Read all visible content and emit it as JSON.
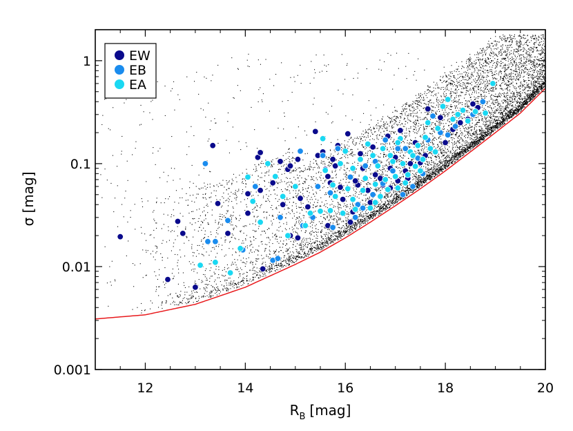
{
  "chart_data": {
    "type": "scatter",
    "title": "",
    "xlabel": "R",
    "xlabel_sub": "B",
    "xlabel_unit": "[mag]",
    "ylabel": "σ [mag]",
    "xlim": [
      11,
      20
    ],
    "ylim": [
      0.001,
      2
    ],
    "yscale": "log",
    "grid": false,
    "legend_position": "top-left",
    "x_ticks": [
      12,
      14,
      16,
      18,
      20
    ],
    "x_tick_labels": [
      "12",
      "14",
      "16",
      "18",
      "20"
    ],
    "y_ticks": [
      0.001,
      0.01,
      0.1,
      1
    ],
    "y_tick_labels": [
      "0.001",
      "0.01",
      "0.1",
      "1"
    ],
    "background_stars_color": "#000000",
    "noise_floor_color": "#e8181b",
    "noise_floor_curve": {
      "x": [
        11,
        12,
        13,
        14,
        15,
        15.5,
        16,
        16.5,
        17,
        17.5,
        18,
        18.5,
        19,
        19.5,
        20
      ],
      "y": [
        0.0031,
        0.0034,
        0.0043,
        0.0063,
        0.0105,
        0.0138,
        0.019,
        0.027,
        0.039,
        0.057,
        0.085,
        0.13,
        0.2,
        0.31,
        0.54
      ]
    },
    "series": [
      {
        "name": "EW",
        "color": "#0a0a8c",
        "points": [
          [
            11.5,
            0.0195
          ],
          [
            12.45,
            0.0075
          ],
          [
            12.65,
            0.0275
          ],
          [
            12.75,
            0.021
          ],
          [
            13.0,
            0.0063
          ],
          [
            13.35,
            0.15
          ],
          [
            13.45,
            0.041
          ],
          [
            13.65,
            0.021
          ],
          [
            14.05,
            0.051
          ],
          [
            14.05,
            0.033
          ],
          [
            14.25,
            0.115
          ],
          [
            14.3,
            0.128
          ],
          [
            14.3,
            0.055
          ],
          [
            14.35,
            0.0095
          ],
          [
            14.55,
            0.065
          ],
          [
            14.7,
            0.105
          ],
          [
            14.75,
            0.04
          ],
          [
            14.85,
            0.088
          ],
          [
            14.9,
            0.095
          ],
          [
            14.9,
            0.02
          ],
          [
            15.05,
            0.11
          ],
          [
            15.05,
            0.019
          ],
          [
            15.1,
            0.046
          ],
          [
            15.4,
            0.205
          ],
          [
            15.45,
            0.12
          ],
          [
            15.55,
            0.13
          ],
          [
            15.6,
            0.088
          ],
          [
            15.65,
            0.075
          ],
          [
            15.7,
            0.065
          ],
          [
            15.75,
            0.11
          ],
          [
            15.85,
            0.15
          ],
          [
            15.9,
            0.059
          ],
          [
            15.95,
            0.045
          ],
          [
            16.05,
            0.195
          ],
          [
            16.1,
            0.027
          ],
          [
            16.25,
            0.062
          ],
          [
            16.3,
            0.125
          ],
          [
            16.35,
            0.09
          ],
          [
            16.45,
            0.055
          ],
          [
            16.5,
            0.042
          ],
          [
            16.6,
            0.078
          ],
          [
            16.7,
            0.072
          ],
          [
            16.75,
            0.062
          ],
          [
            16.85,
            0.185
          ],
          [
            16.9,
            0.09
          ],
          [
            17.0,
            0.115
          ],
          [
            17.05,
            0.068
          ],
          [
            17.2,
            0.085
          ],
          [
            17.3,
            0.1
          ],
          [
            17.4,
            0.16
          ],
          [
            17.5,
            0.102
          ],
          [
            17.6,
            0.12
          ],
          [
            17.65,
            0.34
          ],
          [
            17.8,
            0.13
          ],
          [
            17.9,
            0.28
          ],
          [
            18.0,
            0.16
          ],
          [
            18.15,
            0.215
          ],
          [
            18.3,
            0.25
          ],
          [
            18.45,
            0.27
          ],
          [
            18.55,
            0.38
          ],
          [
            18.65,
            0.35
          ],
          [
            16.2,
            0.068
          ],
          [
            16.15,
            0.034
          ],
          [
            17.25,
            0.072
          ],
          [
            16.9,
            0.058
          ],
          [
            15.8,
            0.095
          ],
          [
            16.55,
            0.145
          ],
          [
            17.1,
            0.21
          ],
          [
            15.25,
            0.038
          ],
          [
            15.65,
            0.025
          ]
        ]
      },
      {
        "name": "EB",
        "color": "#1a8cee",
        "points": [
          [
            13.2,
            0.1
          ],
          [
            13.25,
            0.0175
          ],
          [
            13.4,
            0.0175
          ],
          [
            13.65,
            0.028
          ],
          [
            13.95,
            0.0145
          ],
          [
            14.2,
            0.06
          ],
          [
            14.55,
            0.0115
          ],
          [
            14.65,
            0.012
          ],
          [
            14.7,
            0.03
          ],
          [
            15.1,
            0.132
          ],
          [
            15.15,
            0.025
          ],
          [
            15.45,
            0.06
          ],
          [
            15.55,
            0.12
          ],
          [
            15.7,
            0.052
          ],
          [
            15.75,
            0.024
          ],
          [
            15.85,
            0.14
          ],
          [
            16.2,
            0.03
          ],
          [
            16.25,
            0.04
          ],
          [
            16.4,
            0.095
          ],
          [
            16.55,
            0.05
          ],
          [
            16.6,
            0.105
          ],
          [
            16.8,
            0.17
          ],
          [
            16.95,
            0.085
          ],
          [
            17.15,
            0.05
          ],
          [
            17.2,
            0.14
          ],
          [
            17.35,
            0.06
          ],
          [
            17.45,
            0.113
          ],
          [
            17.55,
            0.08
          ],
          [
            17.75,
            0.29
          ],
          [
            17.9,
            0.2
          ],
          [
            18.05,
            0.19
          ],
          [
            18.2,
            0.23
          ],
          [
            18.55,
            0.3
          ],
          [
            18.75,
            0.4
          ],
          [
            16.1,
            0.074
          ],
          [
            17.05,
            0.14
          ],
          [
            16.35,
            0.037
          ],
          [
            15.35,
            0.03
          ],
          [
            16.75,
            0.064
          ],
          [
            17.65,
            0.17
          ]
        ]
      },
      {
        "name": "EA",
        "color": "#1ad8f2",
        "points": [
          [
            13.1,
            0.0103
          ],
          [
            13.4,
            0.011
          ],
          [
            13.7,
            0.0087
          ],
          [
            13.9,
            0.015
          ],
          [
            14.05,
            0.074
          ],
          [
            14.15,
            0.043
          ],
          [
            14.3,
            0.027
          ],
          [
            14.45,
            0.1
          ],
          [
            14.6,
            0.075
          ],
          [
            14.75,
            0.048
          ],
          [
            14.85,
            0.02
          ],
          [
            15.0,
            0.06
          ],
          [
            15.2,
            0.025
          ],
          [
            15.3,
            0.033
          ],
          [
            15.5,
            0.0345
          ],
          [
            15.55,
            0.175
          ],
          [
            15.6,
            0.086
          ],
          [
            15.7,
            0.035
          ],
          [
            15.75,
            0.062
          ],
          [
            15.8,
            0.048
          ],
          [
            15.9,
            0.1
          ],
          [
            16.0,
            0.132
          ],
          [
            16.05,
            0.057
          ],
          [
            16.15,
            0.045
          ],
          [
            16.2,
            0.036
          ],
          [
            16.3,
            0.11
          ],
          [
            16.4,
            0.072
          ],
          [
            16.45,
            0.155
          ],
          [
            16.5,
            0.037
          ],
          [
            16.55,
            0.12
          ],
          [
            16.6,
            0.063
          ],
          [
            16.65,
            0.095
          ],
          [
            16.7,
            0.048
          ],
          [
            16.75,
            0.14
          ],
          [
            16.8,
            0.07
          ],
          [
            16.85,
            0.056
          ],
          [
            16.9,
            0.12
          ],
          [
            17.0,
            0.075
          ],
          [
            17.05,
            0.058
          ],
          [
            17.1,
            0.175
          ],
          [
            17.15,
            0.1
          ],
          [
            17.25,
            0.078
          ],
          [
            17.3,
            0.13
          ],
          [
            17.4,
            0.094
          ],
          [
            17.45,
            0.15
          ],
          [
            17.55,
            0.11
          ],
          [
            17.6,
            0.18
          ],
          [
            17.65,
            0.25
          ],
          [
            17.7,
            0.14
          ],
          [
            17.8,
            0.13
          ],
          [
            17.85,
            0.22
          ],
          [
            17.95,
            0.36
          ],
          [
            18.05,
            0.42
          ],
          [
            18.15,
            0.27
          ],
          [
            18.25,
            0.3
          ],
          [
            18.35,
            0.33
          ],
          [
            18.6,
            0.32
          ],
          [
            18.8,
            0.31
          ],
          [
            18.95,
            0.6
          ],
          [
            16.15,
            0.09
          ],
          [
            16.95,
            0.105
          ],
          [
            17.35,
            0.12
          ],
          [
            17.5,
            0.085
          ],
          [
            16.35,
            0.055
          ],
          [
            15.95,
            0.033
          ],
          [
            17.2,
            0.065
          ],
          [
            18.45,
            0.26
          ],
          [
            17.05,
            0.16
          ],
          [
            16.6,
            0.042
          ]
        ]
      }
    ]
  }
}
